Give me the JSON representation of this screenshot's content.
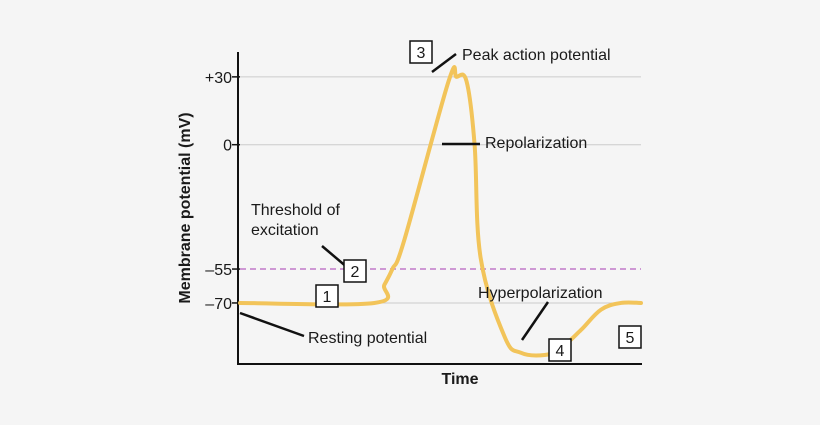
{
  "chart_data": {
    "type": "line",
    "title": "",
    "xlabel": "Time",
    "ylabel": "Membrane potential (mV)",
    "y_ticks": [
      {
        "value": 30,
        "label": "+30"
      },
      {
        "value": 0,
        "label": "0"
      },
      {
        "value": -55,
        "label": "–55"
      },
      {
        "value": -70,
        "label": "–70"
      }
    ],
    "ylim": [
      -97,
      41
    ],
    "grid": "horizontal at tick values",
    "threshold_line": {
      "value": -55,
      "style": "dashed",
      "color": "#c27ac9"
    },
    "series": [
      {
        "color": "#f2c45a",
        "x": [
          0,
          0.335,
          0.36,
          0.38,
          0.41,
          0.52,
          0.54,
          0.565,
          0.585,
          0.6,
          0.66,
          0.7,
          0.76,
          0.8,
          0.85,
          0.9,
          0.95,
          1.0
        ],
        "y": [
          -70,
          -70,
          -62,
          -55,
          -42,
          28,
          30,
          28,
          0,
          -50,
          -85,
          -92,
          -93,
          -90,
          -82,
          -73,
          -70,
          -70
        ]
      }
    ],
    "annotations": [
      {
        "number": "1",
        "text": ""
      },
      {
        "number": "2",
        "text": "Threshold of excitation",
        "lines": [
          "Threshold of",
          "excitation"
        ]
      },
      {
        "number": "3",
        "text": "Peak action potential"
      },
      {
        "number": "",
        "text": "Repolarization"
      },
      {
        "number": "4",
        "text": "Hyperpolarization"
      },
      {
        "number": "5",
        "text": ""
      },
      {
        "number": "",
        "text": "Resting potential"
      }
    ]
  },
  "colors": {
    "curve": "#f2c45a",
    "threshold": "#c27ac9",
    "axis": "#111111",
    "grid": "#cccccc",
    "background": "#f5f5f5"
  }
}
